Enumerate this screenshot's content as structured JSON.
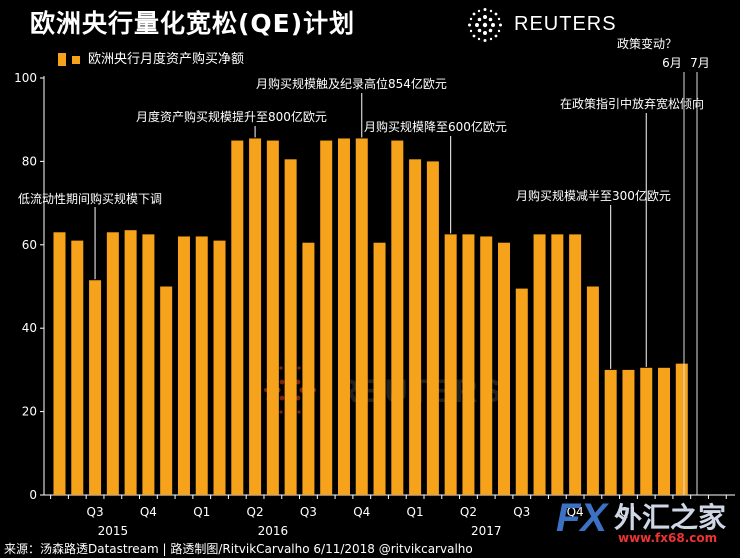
{
  "title": "欧洲央行量化宽松(QE)计划",
  "brand": "REUTERS",
  "legend_label": "欧洲央行月度资产购买净额",
  "source_text": "来源：汤森路透Datastream | 路透制图/RitvikCarvalho  6/11/2018  @ritvikcarvalho",
  "watermark": {
    "fx": "FX",
    "cn": "外汇之家",
    "url": "www.fx68.com"
  },
  "colors": {
    "bar": "#F7A21B",
    "background": "#000000",
    "text": "#ffffff"
  },
  "chart_data": {
    "type": "bar",
    "title": "欧洲央行量化宽松(QE)计划",
    "ylim": [
      0,
      100
    ],
    "yticks": [
      0,
      20,
      40,
      60,
      80,
      100
    ],
    "grid": false,
    "legend": "top-left",
    "series": [
      {
        "name": "欧洲央行月度资产购买净额",
        "values": [
          63,
          61,
          51.5,
          63,
          63.5,
          62.5,
          50,
          62,
          62,
          61,
          85,
          85.5,
          85,
          80.5,
          60.5,
          85,
          85.5,
          85.5,
          60.5,
          85,
          80.5,
          80,
          62.5,
          62.5,
          62,
          60.5,
          49.5,
          62.5,
          62.5,
          62.5,
          50,
          30,
          30,
          30.5,
          30.5,
          31.5
        ]
      }
    ],
    "quarter_labels": [
      {
        "label": "Q3",
        "center_bar": 2
      },
      {
        "label": "Q4",
        "center_bar": 5
      },
      {
        "label": "Q1",
        "center_bar": 8
      },
      {
        "label": "Q2",
        "center_bar": 11
      },
      {
        "label": "Q3",
        "center_bar": 14
      },
      {
        "label": "Q4",
        "center_bar": 17
      },
      {
        "label": "Q1",
        "center_bar": 20
      },
      {
        "label": "Q2",
        "center_bar": 23
      },
      {
        "label": "Q3",
        "center_bar": 26
      },
      {
        "label": "Q4",
        "center_bar": 29
      },
      {
        "label": "Q1",
        "center_bar": 32
      }
    ],
    "year_labels": [
      {
        "label": "2015",
        "center_bar": 3
      },
      {
        "label": "2016",
        "center_bar": 12
      },
      {
        "label": "2017",
        "center_bar": 24
      }
    ],
    "annotations": [
      {
        "text": "低流动性期间购买规模下调",
        "bar": 2,
        "y": 51.5
      },
      {
        "text": "月度资产购买规模提升至800亿欧元",
        "bar": 11,
        "y": 85.5
      },
      {
        "text": "月购买规模触及纪录高位854亿欧元",
        "bar": 17,
        "y": 85.5
      },
      {
        "text": "月购买规模降至600亿欧元",
        "bar": 22,
        "y": 62.5
      },
      {
        "text": "月购买规模减半至300亿欧元",
        "bar": 31,
        "y": 30
      },
      {
        "text": "在政策指引中放弃宽松倾向",
        "bar": 33,
        "y": 30.5
      }
    ],
    "marker_text": {
      "question": "政策变动？",
      "june": "6月",
      "july": "7月"
    }
  }
}
